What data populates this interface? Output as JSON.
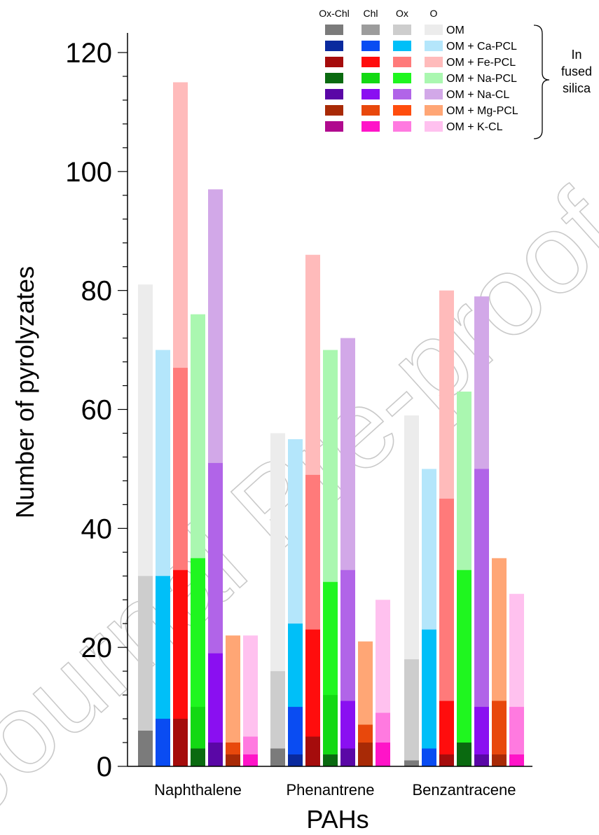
{
  "chart_data": {
    "type": "bar",
    "title": "",
    "xlabel": "PAHs",
    "ylabel": "Number of pyrolyzates",
    "ylim": [
      0,
      120
    ],
    "yticks": [
      0,
      20,
      40,
      60,
      80,
      100,
      120
    ],
    "grid": false,
    "legend_position": "top-right",
    "categories": [
      "Naphthalene",
      "Phenantrene",
      "Benzantracene"
    ],
    "stack_levels": [
      "Ox-Chl",
      "Chl",
      "Ox",
      "O"
    ],
    "series": [
      {
        "name": "OM",
        "colors": [
          "#7b7b7b",
          "#9c9c9c",
          "#cdcdcd",
          "#ececec"
        ],
        "values": {
          "Ox-Chl": [
            6,
            3,
            1
          ],
          "Chl": [
            6,
            3,
            1
          ],
          "Ox": [
            32,
            16,
            18
          ],
          "O": [
            81,
            56,
            59
          ]
        }
      },
      {
        "name": "OM + Ca-PCL",
        "colors": [
          "#0a2a9e",
          "#0a4cf2",
          "#00bff8",
          "#b4e6fb"
        ],
        "values": {
          "Ox-Chl": [
            0,
            2,
            0
          ],
          "Chl": [
            8,
            10,
            3
          ],
          "Ox": [
            32,
            24,
            23
          ],
          "O": [
            70,
            55,
            50
          ]
        }
      },
      {
        "name": "OM + Fe-PCL",
        "colors": [
          "#a50c0c",
          "#ff0d0d",
          "#ff7a7a",
          "#ffbbbb"
        ],
        "values": {
          "Ox-Chl": [
            8,
            5,
            2
          ],
          "Chl": [
            33,
            23,
            11
          ],
          "Ox": [
            67,
            49,
            45
          ],
          "O": [
            115,
            86,
            80
          ]
        }
      },
      {
        "name": "OM + Na-PCL",
        "colors": [
          "#0a6a10",
          "#13d913",
          "#1ff61f",
          "#aaf7b0"
        ],
        "values": {
          "Ox-Chl": [
            3,
            2,
            4
          ],
          "Chl": [
            10,
            12,
            4
          ],
          "Ox": [
            35,
            31,
            33
          ],
          "O": [
            76,
            70,
            63
          ]
        }
      },
      {
        "name": "OM + Na-CL",
        "colors": [
          "#5a07a6",
          "#8a0ff1",
          "#b164e8",
          "#d2a8e8"
        ],
        "values": {
          "Ox-Chl": [
            4,
            3,
            2
          ],
          "Chl": [
            19,
            11,
            10
          ],
          "Ox": [
            51,
            33,
            50
          ],
          "O": [
            97,
            72,
            79
          ]
        }
      },
      {
        "name": "OM + Mg-PCL",
        "colors": [
          "#a82a06",
          "#e8480c",
          "#ff4d0d",
          "#ffa675"
        ],
        "values": {
          "Ox-Chl": [
            2,
            4,
            2
          ],
          "Chl": [
            4,
            7,
            11
          ],
          "Ox": [
            4,
            7,
            11
          ],
          "O": [
            22,
            21,
            35
          ]
        }
      },
      {
        "name": "OM + K-CL",
        "colors": [
          "#b00a8e",
          "#ff14c8",
          "#ff7ae0",
          "#ffc1ef"
        ],
        "values": {
          "Ox-Chl": [
            0,
            0,
            0
          ],
          "Chl": [
            2,
            4,
            2
          ],
          "Ox": [
            5,
            9,
            10
          ],
          "O": [
            22,
            28,
            29
          ]
        }
      }
    ],
    "legend_annotation": "In fused silica"
  },
  "watermark": "Journal Pre-proof"
}
